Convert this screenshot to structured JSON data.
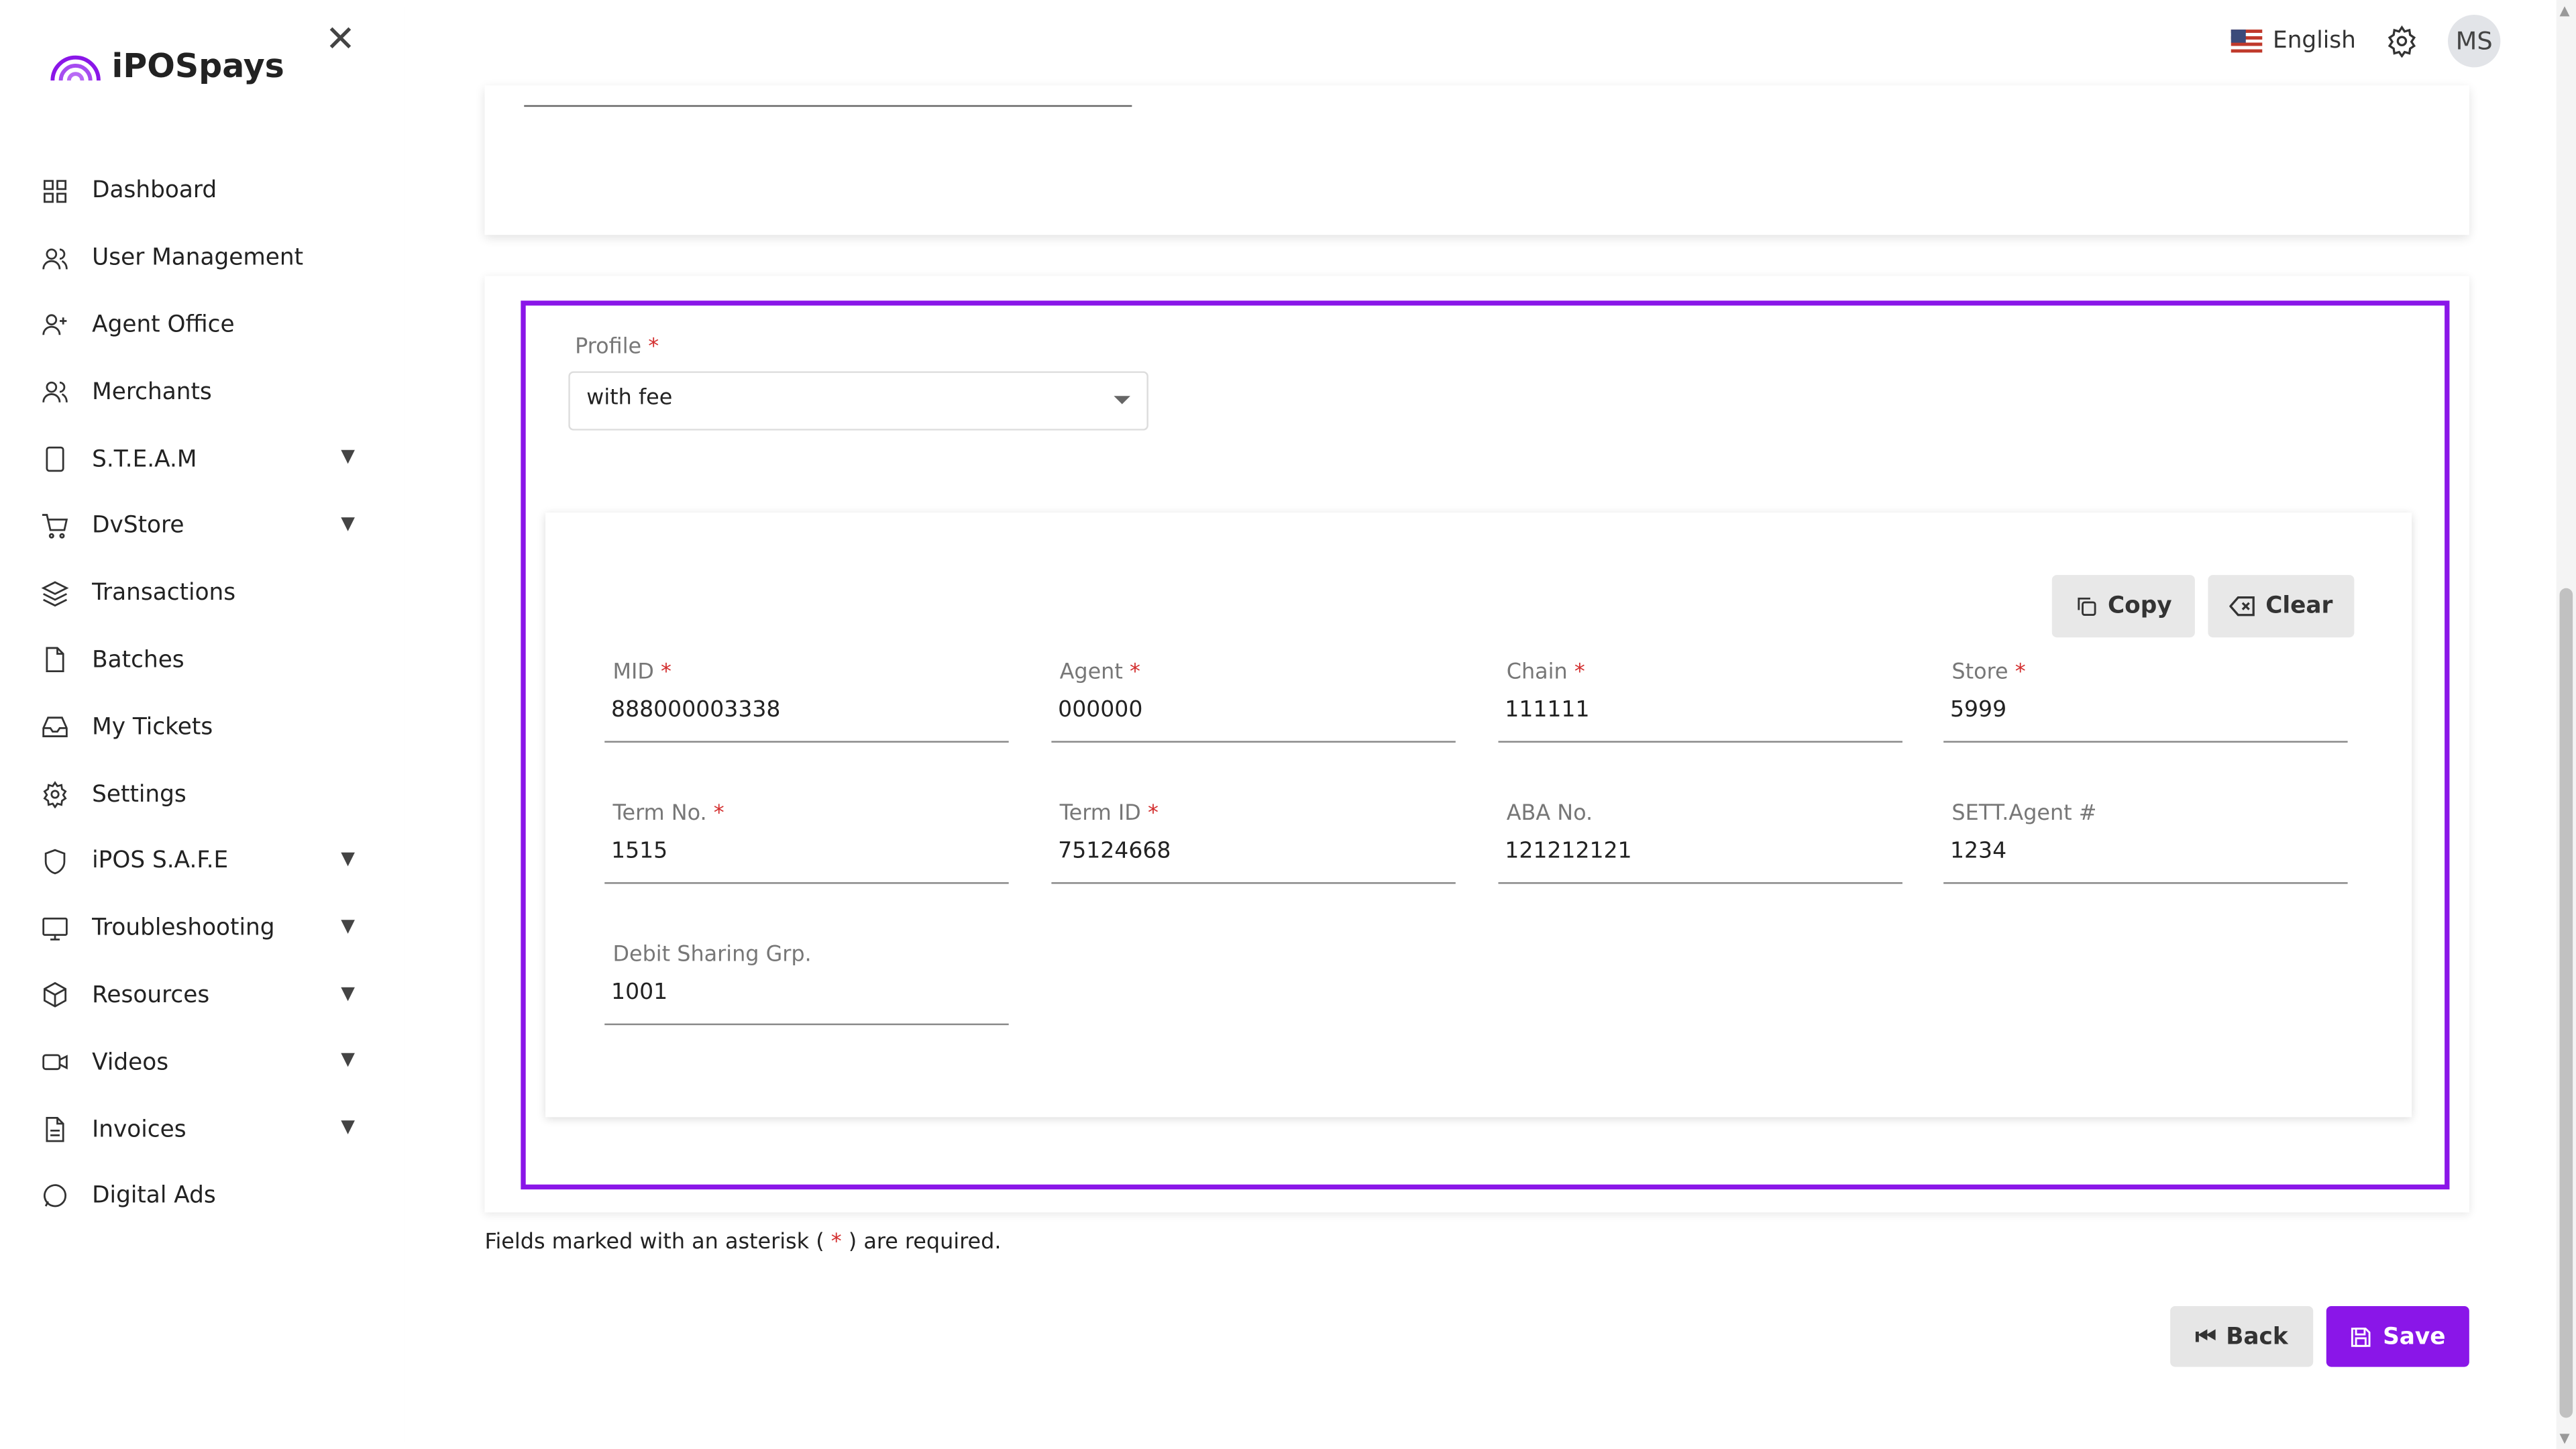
{
  "brand": {
    "name": "iPOSpays",
    "accent": "#8a16e8"
  },
  "sidebar": {
    "items": [
      {
        "label": "Dashboard",
        "icon": "grid-icon"
      },
      {
        "label": "User Management",
        "icon": "users-icon"
      },
      {
        "label": "Agent Office",
        "icon": "user-plus-icon"
      },
      {
        "label": "Merchants",
        "icon": "users-icon"
      },
      {
        "label": "S.T.E.A.M",
        "icon": "tablet-icon",
        "expandable": true
      },
      {
        "label": "DvStore",
        "icon": "cart-icon",
        "expandable": true
      },
      {
        "label": "Transactions",
        "icon": "layers-icon"
      },
      {
        "label": "Batches",
        "icon": "file-icon"
      },
      {
        "label": "My Tickets",
        "icon": "inbox-icon"
      },
      {
        "label": "Settings",
        "icon": "gear-icon"
      },
      {
        "label": "iPOS S.A.F.E",
        "icon": "shield-icon",
        "expandable": true
      },
      {
        "label": "Troubleshooting",
        "icon": "monitor-icon",
        "expandable": true
      },
      {
        "label": "Resources",
        "icon": "box-icon",
        "expandable": true
      },
      {
        "label": "Videos",
        "icon": "video-icon",
        "expandable": true
      },
      {
        "label": "Invoices",
        "icon": "file-text-icon",
        "expandable": true
      },
      {
        "label": "Digital Ads",
        "icon": "message-icon"
      }
    ]
  },
  "topbar": {
    "language": "English",
    "avatar": "MS"
  },
  "profile": {
    "label": "Profile",
    "value": "with fee"
  },
  "actions": {
    "copy": "Copy",
    "clear": "Clear"
  },
  "fields": [
    {
      "label": "MID",
      "value": "888000003338",
      "required": true
    },
    {
      "label": "Agent",
      "value": "000000",
      "required": true
    },
    {
      "label": "Chain",
      "value": "111111",
      "required": true
    },
    {
      "label": "Store",
      "value": "5999",
      "required": true
    },
    {
      "label": "Term No.",
      "value": "1515",
      "required": true
    },
    {
      "label": "Term ID",
      "value": "75124668",
      "required": true
    },
    {
      "label": "ABA No.",
      "value": "121212121",
      "required": false
    },
    {
      "label": "SETT.Agent #",
      "value": "1234",
      "required": false
    },
    {
      "label": "Debit Sharing Grp.",
      "value": "1001",
      "required": false
    }
  ],
  "note": {
    "before": "Fields marked with an asterisk ( ",
    "star": "*",
    "after": " ) are required."
  },
  "footer": {
    "back": "Back",
    "save": "Save"
  }
}
